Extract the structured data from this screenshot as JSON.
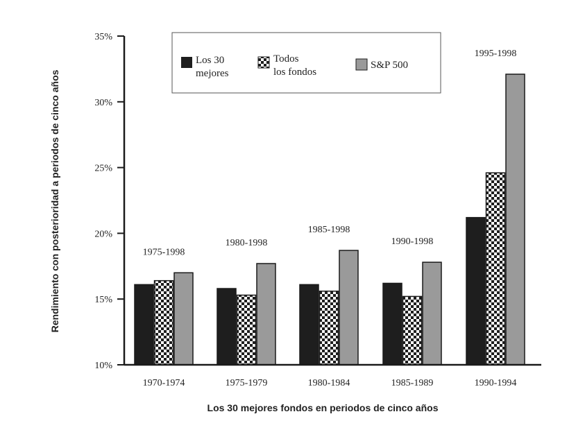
{
  "chart_data": {
    "type": "bar",
    "categories": [
      "1970-1974",
      "1975-1979",
      "1980-1984",
      "1985-1989",
      "1990-1994"
    ],
    "period_labels": [
      "1975-1998",
      "1980-1998",
      "1985-1998",
      "1990-1998",
      "1995-1998"
    ],
    "series": [
      {
        "name_lines": [
          "Los 30",
          "mejores"
        ],
        "values": [
          16.1,
          15.8,
          16.1,
          16.2,
          21.2
        ],
        "color": "#1e1e1e",
        "pattern": "solid"
      },
      {
        "name_lines": [
          "Todos",
          "los fondos"
        ],
        "values": [
          16.4,
          15.3,
          15.6,
          15.2,
          24.6
        ],
        "color": "#1e1e1e",
        "pattern": "checker"
      },
      {
        "name_lines": [
          "S&P 500"
        ],
        "values": [
          17.0,
          17.7,
          18.7,
          17.8,
          32.1
        ],
        "color": "#9a9a9a",
        "pattern": "solid"
      }
    ],
    "yticks": [
      "10%",
      "15%",
      "20%",
      "25%",
      "30%",
      "35%"
    ],
    "ylim": [
      10,
      35
    ],
    "xlabel": "Los 30 mejores fondos en periodos de cinco años",
    "ylabel": "Rendimiento con posterioridad a periodos de cinco años",
    "legend_position": "top-center",
    "grid": false
  }
}
